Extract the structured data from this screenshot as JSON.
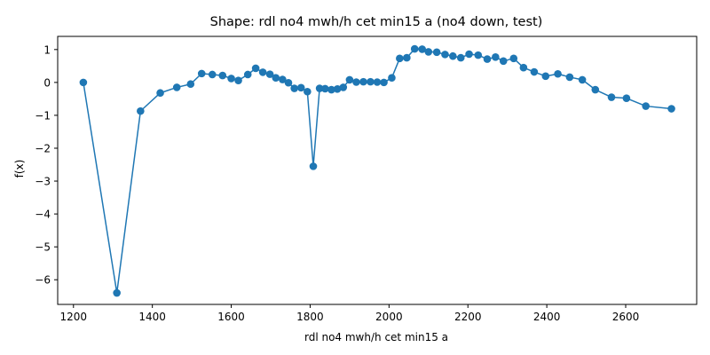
{
  "chart_data": {
    "type": "line",
    "title": "Shape: rdl no4 mwh/h cet min15 a (no4 down, test)",
    "xlabel": "rdl no4 mwh/h cet min15 a",
    "ylabel": "f(x)",
    "xlim": [
      1160,
      2780
    ],
    "ylim": [
      -6.75,
      1.4
    ],
    "xticks": [
      1200,
      1400,
      1600,
      1800,
      2000,
      2200,
      2400,
      2600
    ],
    "yticks": [
      1,
      0,
      -1,
      -2,
      -3,
      -4,
      -5,
      -6
    ],
    "grid": false,
    "marker": "circle",
    "color": "#1f77b4",
    "series": [
      {
        "x": [
          1225,
          1310,
          1370,
          1420,
          1462,
          1497,
          1525,
          1552,
          1578,
          1600,
          1618,
          1642,
          1662,
          1680,
          1698,
          1713,
          1730,
          1745,
          1760,
          1777,
          1793,
          1808,
          1824,
          1838,
          1854,
          1869,
          1884,
          1900,
          1917,
          1935,
          1953,
          1970,
          1987,
          2007,
          2027,
          2045,
          2065,
          2084,
          2100,
          2121,
          2142,
          2162,
          2182,
          2203,
          2226,
          2249,
          2270,
          2290,
          2316,
          2341,
          2368,
          2397,
          2428,
          2458,
          2490,
          2523,
          2564,
          2602,
          2651,
          2716
        ],
        "y": [
          0.0,
          -6.4,
          -0.87,
          -0.32,
          -0.15,
          -0.05,
          0.27,
          0.24,
          0.21,
          0.12,
          0.06,
          0.24,
          0.43,
          0.31,
          0.25,
          0.14,
          0.09,
          -0.01,
          -0.18,
          -0.16,
          -0.28,
          -2.55,
          -0.18,
          -0.19,
          -0.22,
          -0.2,
          -0.15,
          0.08,
          0.01,
          0.02,
          0.02,
          0.01,
          0.0,
          0.14,
          0.73,
          0.75,
          1.02,
          1.01,
          0.93,
          0.92,
          0.85,
          0.8,
          0.75,
          0.86,
          0.83,
          0.71,
          0.77,
          0.65,
          0.73,
          0.45,
          0.32,
          0.19,
          0.26,
          0.16,
          0.08,
          -0.22,
          -0.45,
          -0.48,
          -0.72,
          -0.8
        ]
      }
    ]
  }
}
